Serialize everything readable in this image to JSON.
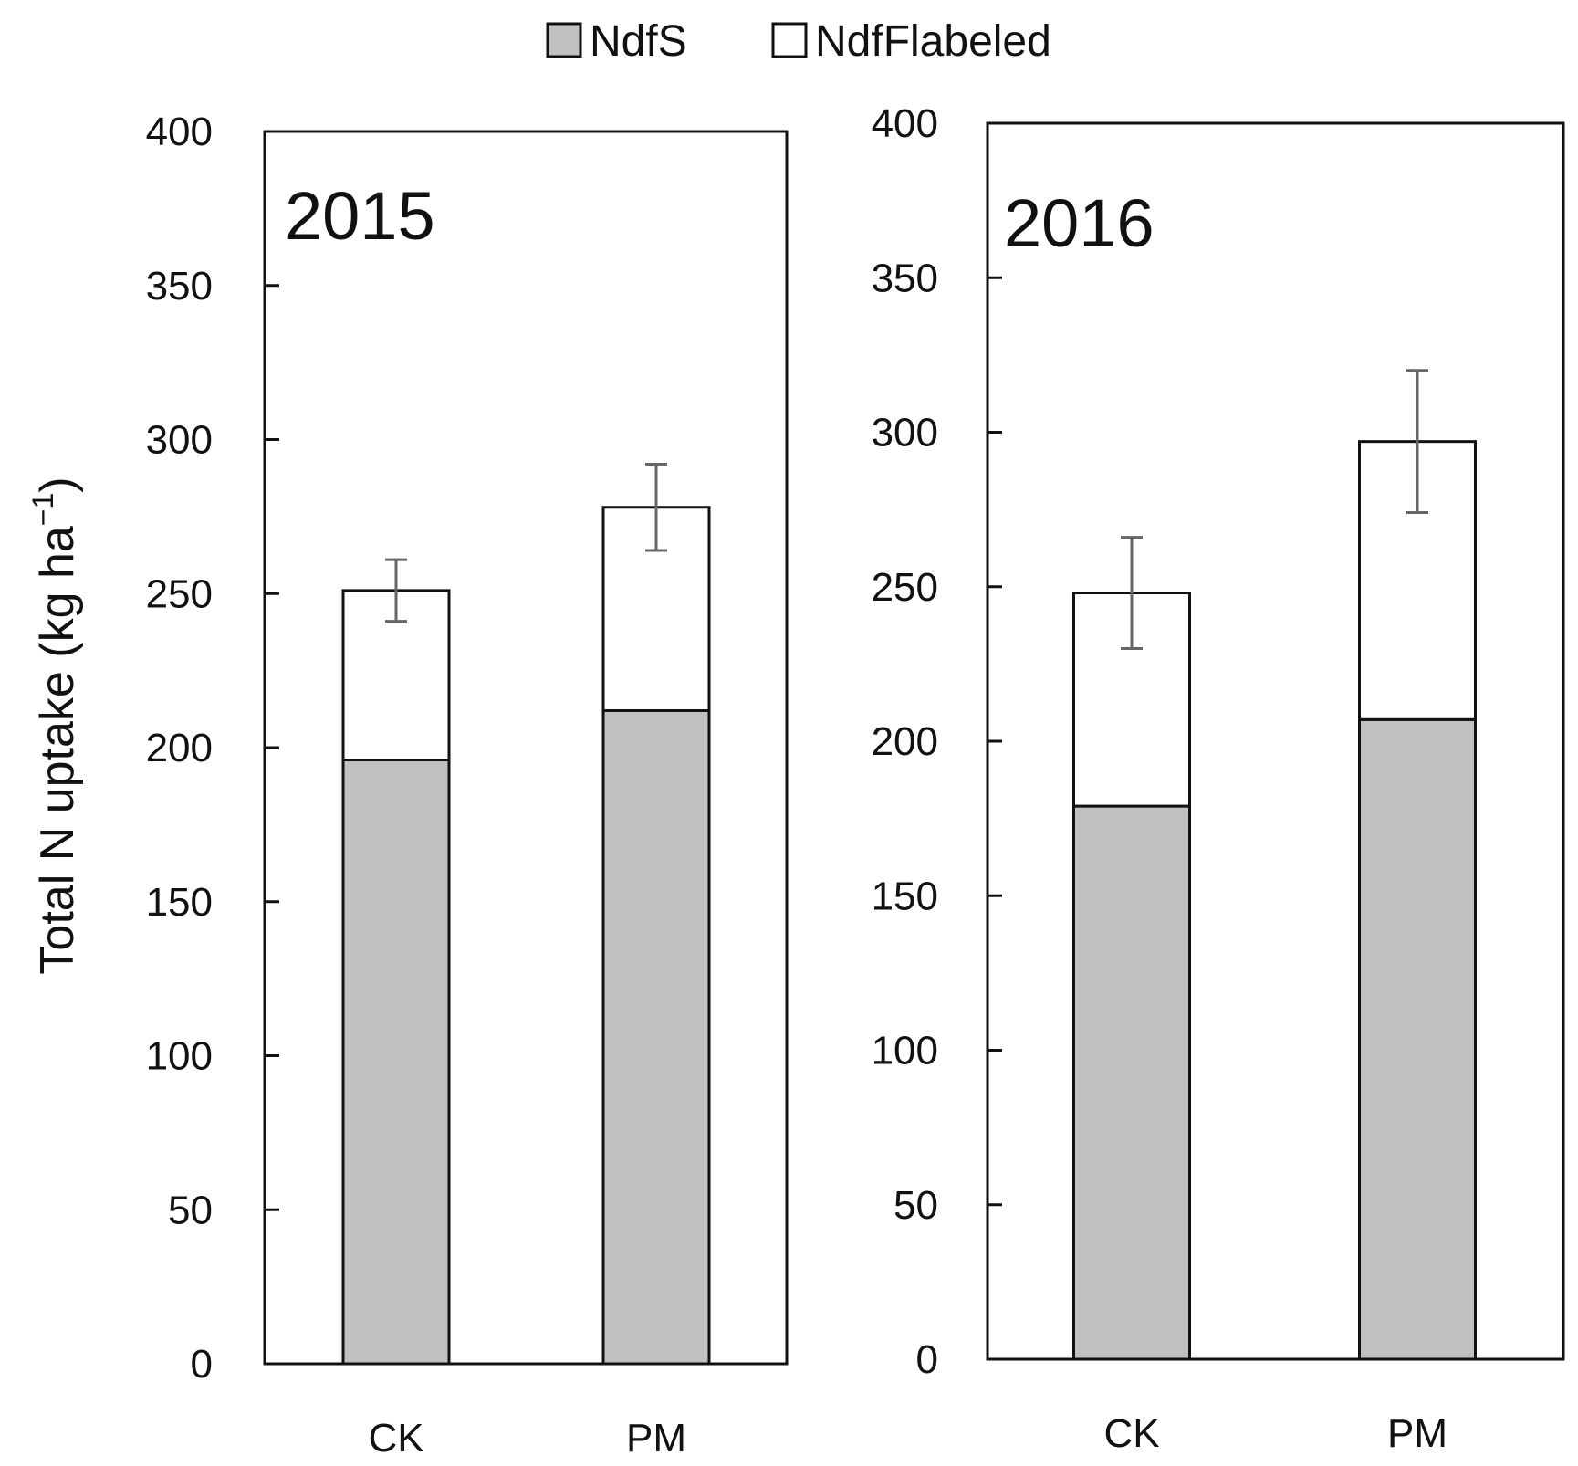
{
  "chart_data": {
    "type": "bar",
    "stacked": true,
    "ylabel": "Total N uptake (kg ha",
    "ylabel_superscript": "−1",
    "ylabel_close": ")",
    "legend": [
      {
        "name": "NdfS",
        "color": "#c0c0c0"
      },
      {
        "name": "NdfFlabeled",
        "color": "#ffffff"
      }
    ],
    "panels": [
      {
        "title": "2015",
        "categories": [
          "CK",
          "PM"
        ],
        "ylim": [
          0,
          400
        ],
        "yticks": [
          0,
          50,
          100,
          150,
          200,
          250,
          300,
          350,
          400
        ],
        "series": [
          {
            "name": "NdfS",
            "values": [
              196,
              212
            ]
          },
          {
            "name": "NdfFlabeled",
            "values": [
              55,
              66
            ]
          }
        ],
        "totals": [
          251,
          278
        ],
        "errors": [
          10,
          14
        ]
      },
      {
        "title": "2016",
        "categories": [
          "CK",
          "PM"
        ],
        "ylim": [
          0,
          400
        ],
        "yticks": [
          0,
          50,
          100,
          150,
          200,
          250,
          300,
          350,
          400
        ],
        "series": [
          {
            "name": "NdfS",
            "values": [
              179,
              207
            ]
          },
          {
            "name": "NdfFlabeled",
            "values": [
              69,
              90
            ]
          }
        ],
        "totals": [
          248,
          297
        ],
        "errors": [
          18,
          23
        ]
      }
    ]
  },
  "colors": {
    "ndfs_fill": "#c0c0c0",
    "ndfflabeled_fill": "#ffffff",
    "stroke": "#111111",
    "error_bar": "#666666"
  }
}
